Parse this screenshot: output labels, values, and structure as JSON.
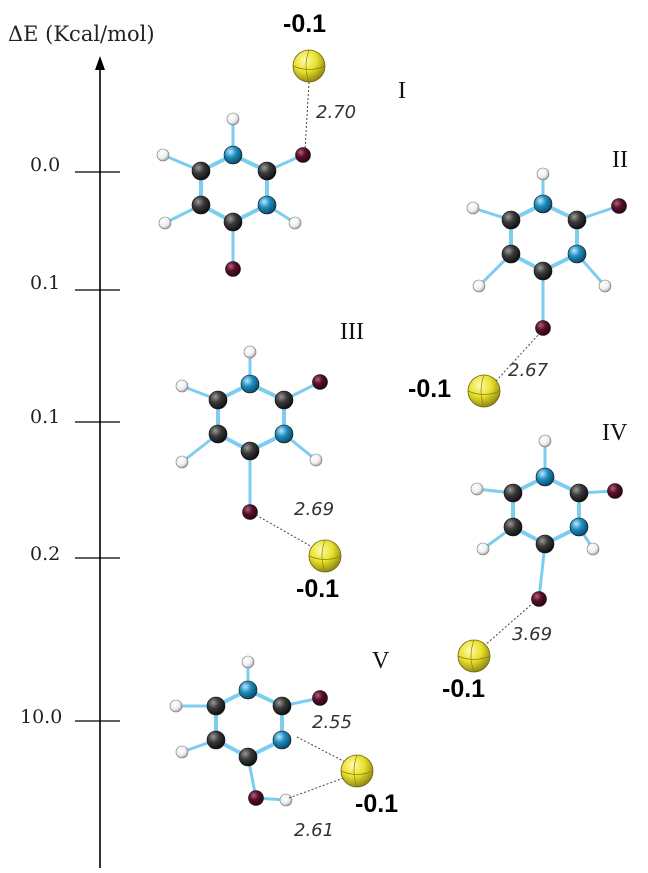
{
  "axis": {
    "title": "ΔE (Kcal/mol)"
  },
  "ticks": [
    "0.0",
    "0.1",
    "0.1",
    "0.2",
    "10.0"
  ],
  "structures": [
    {
      "id": "I",
      "label": "I",
      "distances": [
        "2.70"
      ],
      "charge": "-0.1"
    },
    {
      "id": "II",
      "label": "II",
      "distances": [
        "2.67"
      ],
      "charge": "-0.1"
    },
    {
      "id": "III",
      "label": "III",
      "distances": [
        "2.69"
      ],
      "charge": "-0.1"
    },
    {
      "id": "IV",
      "label": "IV",
      "distances": [
        "3.69"
      ],
      "charge": "-0.1"
    },
    {
      "id": "V",
      "label": "V",
      "distances": [
        "2.55",
        "2.61"
      ],
      "charge": "-0.1"
    }
  ],
  "colors": {
    "carbon": "#2b2b2b",
    "nitrogen": "#1e8fc0",
    "oxygen": "#5a0f2a",
    "hydrogen": "#ffffff",
    "ion": "#e8e12a",
    "bond": "#7ccdf0"
  }
}
